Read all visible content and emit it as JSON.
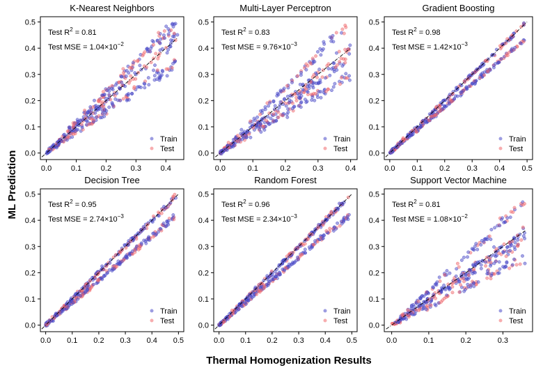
{
  "figure": {
    "ylabel": "ML Prediction",
    "xlabel": "Thermal Homogenization Results"
  },
  "colors": {
    "train": "#4b4bc8",
    "test": "#f06a6e",
    "identity": "#000000"
  },
  "chart_data": [
    {
      "type": "scatter",
      "title": "K-Nearest Neighbors",
      "r2_label": "Test R",
      "r2_sup": "2",
      "r2_value": " = 0.81",
      "mse_label": "Test MSE = 1.04×10",
      "mse_exp": "−2",
      "xlim": [
        -0.02,
        0.46
      ],
      "ylim": [
        -0.025,
        0.52
      ],
      "xticks": [
        0.0,
        0.1,
        0.2,
        0.3,
        0.4
      ],
      "yticks": [
        0.0,
        0.1,
        0.2,
        0.3,
        0.4,
        0.5
      ],
      "xmax": 0.44,
      "max_pred": 0.5,
      "series": [
        {
          "name": "Train",
          "alpha": 0.5
        },
        {
          "name": "Test",
          "alpha": 0.5
        }
      ],
      "r2": 0.81,
      "spread": 0.28,
      "branches": [
        1.0,
        0.8,
        1.15
      ]
    },
    {
      "type": "scatter",
      "title": "Multi-Layer Perceptron",
      "r2_label": "Test R",
      "r2_sup": "2",
      "r2_value": " = 0.83",
      "mse_label": "Test MSE = 9.76×10",
      "mse_exp": "−3",
      "xlim": [
        -0.02,
        0.42
      ],
      "ylim": [
        -0.025,
        0.52
      ],
      "xticks": [
        0.0,
        0.1,
        0.2,
        0.3,
        0.4
      ],
      "yticks": [
        0.0,
        0.1,
        0.2,
        0.3,
        0.4,
        0.5
      ],
      "xmax": 0.4,
      "max_pred": 0.5,
      "series": [
        {
          "name": "Train",
          "alpha": 0.5
        },
        {
          "name": "Test",
          "alpha": 0.5
        }
      ],
      "r2": 0.83,
      "spread": 0.06,
      "branches": [
        1.0,
        0.75,
        1.25,
        0.9
      ]
    },
    {
      "type": "scatter",
      "title": "Gradient Boosting",
      "r2_label": "Test R",
      "r2_sup": "2",
      "r2_value": " = 0.98",
      "mse_label": "Test MSE = 1.42×10",
      "mse_exp": "−3",
      "xlim": [
        -0.02,
        0.52
      ],
      "ylim": [
        -0.025,
        0.52
      ],
      "xticks": [
        0.0,
        0.1,
        0.2,
        0.3,
        0.4,
        0.5
      ],
      "yticks": [
        0.0,
        0.1,
        0.2,
        0.3,
        0.4,
        0.5
      ],
      "xmax": 0.49,
      "max_pred": 0.5,
      "series": [
        {
          "name": "Train",
          "alpha": 0.5
        },
        {
          "name": "Test",
          "alpha": 0.5
        }
      ],
      "r2": 0.98,
      "spread": 0.1,
      "branches": [
        1.0,
        0.88
      ]
    },
    {
      "type": "scatter",
      "title": "Decision Tree",
      "r2_label": "Test R",
      "r2_sup": "2",
      "r2_value": " = 0.95",
      "mse_label": "Test MSE = 2.74×10",
      "mse_exp": "−3",
      "xlim": [
        -0.02,
        0.52
      ],
      "ylim": [
        -0.025,
        0.52
      ],
      "xticks": [
        0.0,
        0.1,
        0.2,
        0.3,
        0.4,
        0.5
      ],
      "yticks": [
        0.0,
        0.1,
        0.2,
        0.3,
        0.4,
        0.5
      ],
      "xmax": 0.49,
      "max_pred": 0.5,
      "series": [
        {
          "name": "Train",
          "alpha": 0.5
        },
        {
          "name": "Test",
          "alpha": 0.5
        }
      ],
      "r2": 0.95,
      "spread": 0.14,
      "branches": [
        1.0,
        0.85
      ]
    },
    {
      "type": "scatter",
      "title": "Random Forest",
      "r2_label": "Test R",
      "r2_sup": "2",
      "r2_value": " = 0.96",
      "mse_label": "Test MSE = 2.34×10",
      "mse_exp": "−3",
      "xlim": [
        -0.02,
        0.52
      ],
      "ylim": [
        -0.025,
        0.52
      ],
      "xticks": [
        0.0,
        0.1,
        0.2,
        0.3,
        0.4,
        0.5
      ],
      "yticks": [
        0.0,
        0.1,
        0.2,
        0.3,
        0.4,
        0.5
      ],
      "xmax": 0.49,
      "max_pred": 0.5,
      "series": [
        {
          "name": "Train",
          "alpha": 0.5
        },
        {
          "name": "Test",
          "alpha": 0.5
        }
      ],
      "r2": 0.96,
      "spread": 0.12,
      "branches": [
        1.0,
        0.86
      ]
    },
    {
      "type": "scatter",
      "title": "Support Vector Machine",
      "r2_label": "Test R",
      "r2_sup": "2",
      "r2_value": " = 0.81",
      "mse_label": "Test MSE = 1.08×10",
      "mse_exp": "−2",
      "xlim": [
        -0.02,
        0.38
      ],
      "ylim": [
        -0.025,
        0.52
      ],
      "xticks": [
        0.0,
        0.1,
        0.2,
        0.3
      ],
      "yticks": [
        0.0,
        0.1,
        0.2,
        0.3,
        0.4,
        0.5
      ],
      "xmax": 0.36,
      "max_pred": 0.5,
      "series": [
        {
          "name": "Train",
          "alpha": 0.5
        },
        {
          "name": "Test",
          "alpha": 0.5
        }
      ],
      "r2": 0.81,
      "spread": 0.05,
      "branches": [
        1.0,
        0.72,
        1.3,
        0.9
      ]
    }
  ]
}
